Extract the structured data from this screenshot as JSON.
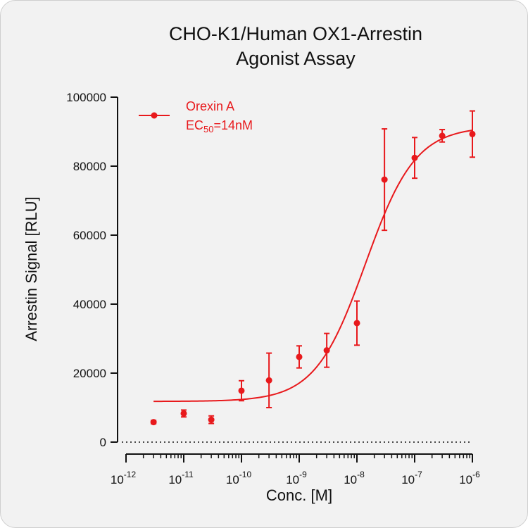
{
  "chart_data": {
    "type": "scatter",
    "title_line1": "CHO-K1/Human OX1-Arrestin",
    "title_line2": "Agonist Assay",
    "xlabel": "Conc. [M]",
    "ylabel": "Arrestin Signal [RLU]",
    "x_scale": "log",
    "xlim": [
      1e-12,
      1e-06
    ],
    "ylim": [
      0,
      100000
    ],
    "y_ticks": [
      0,
      20000,
      40000,
      60000,
      80000,
      100000
    ],
    "y_tick_labels": [
      "0",
      "20000",
      "40000",
      "60000",
      "80000",
      "100000"
    ],
    "x_tick_exponents": [
      -12,
      -11,
      -10,
      -9,
      -8,
      -7,
      -6
    ],
    "x_tick_base": "10",
    "grid": false,
    "baseline_dotted_at": 0,
    "series": [
      {
        "name": "Orexin A",
        "color": "#e8191c",
        "x": [
          3e-12,
          1e-11,
          3e-11,
          1e-10,
          3e-10,
          1e-09,
          3e-09,
          1e-08,
          3e-08,
          1e-07,
          3e-07,
          1e-06
        ],
        "y": [
          5800,
          8300,
          6500,
          14900,
          17900,
          24700,
          26600,
          34500,
          76100,
          82400,
          88800,
          89300
        ],
        "error": [
          500,
          1000,
          1100,
          2900,
          7900,
          3200,
          4900,
          6400,
          14700,
          5900,
          1800,
          6700
        ],
        "fit": {
          "model": "four-parameter logistic",
          "bottom": 11800,
          "top": 91500,
          "ec50": 1.4e-08,
          "hill": 1.0
        }
      }
    ],
    "legend": {
      "placement": "top-left",
      "entries": [
        {
          "label": "Orexin A",
          "ec50_prefix": "EC",
          "ec50_sub": "50",
          "ec50_suffix": "=14nM"
        }
      ]
    }
  }
}
